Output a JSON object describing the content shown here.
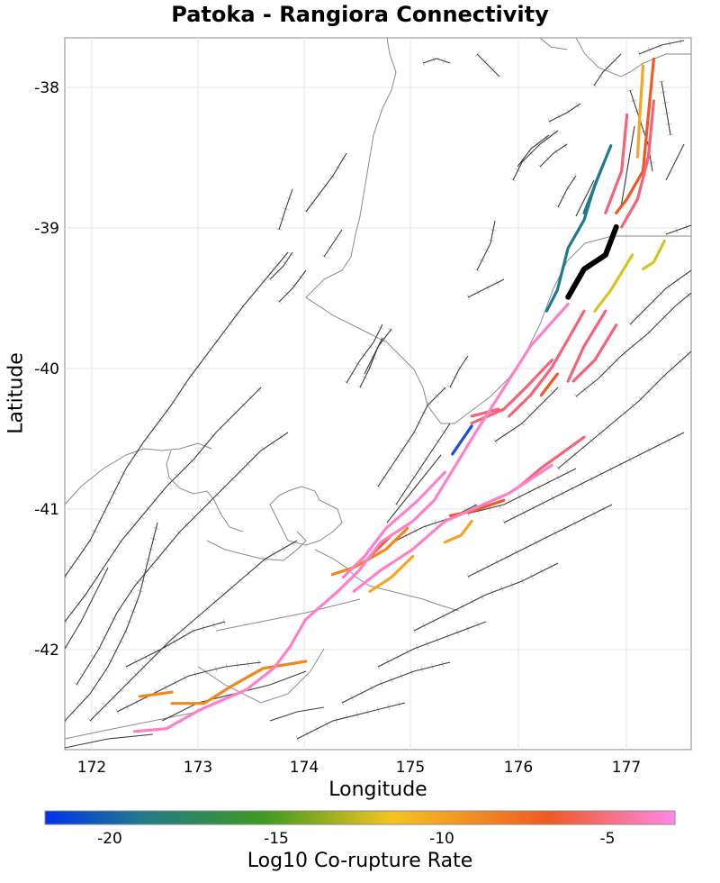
{
  "title": "Patoka - Rangiora Connectivity",
  "x_axis": {
    "label": "Longitude",
    "ticks": [
      "172",
      "173",
      "174",
      "175",
      "176",
      "177"
    ]
  },
  "y_axis": {
    "label": "Latitude",
    "ticks": [
      "-38",
      "-39",
      "-40",
      "-41",
      "-42"
    ]
  },
  "colorbar": {
    "label": "Log10 Co-rupture Rate",
    "ticks": [
      "-20",
      "-15",
      "-10",
      "-5"
    ],
    "colors": [
      "#0033ee",
      "#1f7a8c",
      "#3f9a1f",
      "#f5c424",
      "#ee5a24",
      "#ff88e8"
    ]
  },
  "chart_data": {
    "type": "map",
    "title": "Patoka - Rangiora Connectivity",
    "xlabel": "Longitude",
    "ylabel": "Latitude",
    "xlim": [
      171.75,
      177.6
    ],
    "ylim": [
      -42.73,
      -37.65
    ],
    "color_scale": {
      "label": "Log10 Co-rupture Rate",
      "range": [
        -22.3,
        -3.4
      ]
    },
    "source_fault": {
      "name": "Patoka - Rangiora",
      "color": "#000000",
      "coords": [
        [
          176.9,
          -39.0
        ],
        [
          176.8,
          -39.2
        ],
        [
          176.6,
          -39.3
        ],
        [
          176.45,
          -39.5
        ]
      ]
    },
    "faults": [
      {
        "value": -21.5,
        "color": "#1a4fdc",
        "coords": [
          [
            175.55,
            -40.42
          ],
          [
            175.37,
            -40.62
          ]
        ]
      },
      {
        "value": -19.5,
        "color": "#1f7a8c",
        "coords": [
          [
            176.85,
            -38.42
          ],
          [
            176.7,
            -38.7
          ],
          [
            176.6,
            -38.95
          ],
          [
            176.45,
            -39.15
          ],
          [
            176.35,
            -39.45
          ],
          [
            176.25,
            -39.6
          ]
        ]
      },
      {
        "value": -19.5,
        "color": "#1f7a8c",
        "coords": [
          [
            176.78,
            -38.55
          ],
          [
            176.6,
            -38.9
          ]
        ]
      },
      {
        "value": -13.5,
        "color": "#d8c224",
        "coords": [
          [
            177.35,
            -39.1
          ],
          [
            177.25,
            -39.25
          ],
          [
            177.15,
            -39.3
          ]
        ]
      },
      {
        "value": -13.5,
        "color": "#d8c224",
        "coords": [
          [
            177.05,
            -39.2
          ],
          [
            176.85,
            -39.45
          ],
          [
            176.7,
            -39.6
          ]
        ]
      },
      {
        "value": -10.5,
        "color": "#f5a524",
        "coords": [
          [
            177.15,
            -37.85
          ],
          [
            177.12,
            -38.2
          ],
          [
            177.1,
            -38.5
          ]
        ]
      },
      {
        "value": -10.5,
        "color": "#f5a524",
        "coords": [
          [
            175.55,
            -41.1
          ],
          [
            175.45,
            -41.2
          ],
          [
            175.3,
            -41.25
          ]
        ]
      },
      {
        "value": -10.5,
        "color": "#f5a524",
        "coords": [
          [
            175.0,
            -41.35
          ],
          [
            174.8,
            -41.5
          ],
          [
            174.6,
            -41.6
          ]
        ]
      },
      {
        "value": -9.5,
        "color": "#f0881e",
        "coords": [
          [
            174.0,
            -42.1
          ],
          [
            173.6,
            -42.15
          ],
          [
            173.3,
            -42.28
          ],
          [
            173.05,
            -42.4
          ],
          [
            172.75,
            -42.4
          ]
        ]
      },
      {
        "value": -9.5,
        "color": "#f0881e",
        "coords": [
          [
            172.75,
            -42.32
          ],
          [
            172.45,
            -42.35
          ]
        ]
      },
      {
        "value": -9.5,
        "color": "#f0881e",
        "coords": [
          [
            174.95,
            -41.15
          ],
          [
            174.75,
            -41.3
          ],
          [
            174.45,
            -41.43
          ],
          [
            174.25,
            -41.48
          ]
        ]
      },
      {
        "value": -7.5,
        "color": "#ee5a24",
        "coords": [
          [
            177.25,
            -37.8
          ],
          [
            177.2,
            -38.2
          ],
          [
            177.15,
            -38.6
          ],
          [
            177.0,
            -38.8
          ],
          [
            176.9,
            -38.9
          ]
        ]
      },
      {
        "value": -7.5,
        "color": "#ee5a24",
        "coords": [
          [
            176.35,
            -40.05
          ],
          [
            176.2,
            -40.2
          ]
        ]
      },
      {
        "value": -7.5,
        "color": "#ee5a24",
        "coords": [
          [
            175.85,
            -40.95
          ],
          [
            175.55,
            -41.03
          ],
          [
            175.35,
            -41.06
          ]
        ]
      },
      {
        "value": -7.5,
        "color": "#ee5a24",
        "coords": [
          [
            174.8,
            -41.2
          ],
          [
            174.6,
            -41.35
          ]
        ]
      },
      {
        "value": -5.5,
        "color": "#f5637a",
        "coords": [
          [
            177.25,
            -38.1
          ],
          [
            177.2,
            -38.5
          ],
          [
            177.1,
            -38.8
          ],
          [
            176.95,
            -39.0
          ]
        ]
      },
      {
        "value": -5.5,
        "color": "#f5637a",
        "coords": [
          [
            177.0,
            -38.2
          ],
          [
            176.95,
            -38.6
          ],
          [
            176.8,
            -38.9
          ]
        ]
      },
      {
        "value": -5.5,
        "color": "#f5637a",
        "coords": [
          [
            176.6,
            -39.6
          ],
          [
            176.45,
            -39.8
          ],
          [
            176.3,
            -40.0
          ],
          [
            176.1,
            -40.2
          ],
          [
            175.9,
            -40.35
          ]
        ]
      },
      {
        "value": -5.5,
        "color": "#f5637a",
        "coords": [
          [
            176.8,
            -39.6
          ],
          [
            176.6,
            -39.85
          ],
          [
            176.45,
            -40.1
          ]
        ]
      },
      {
        "value": -5.5,
        "color": "#f5637a",
        "coords": [
          [
            176.9,
            -39.7
          ],
          [
            176.7,
            -39.95
          ],
          [
            176.5,
            -40.1
          ]
        ]
      },
      {
        "value": -5.5,
        "color": "#f5637a",
        "coords": [
          [
            176.3,
            -39.95
          ],
          [
            176.05,
            -40.15
          ],
          [
            175.85,
            -40.3
          ],
          [
            175.55,
            -40.4
          ]
        ]
      },
      {
        "value": -5.5,
        "color": "#f5637a",
        "coords": [
          [
            176.6,
            -40.5
          ],
          [
            176.2,
            -40.72
          ],
          [
            176.0,
            -40.85
          ]
        ]
      },
      {
        "value": -5.5,
        "color": "#f5637a",
        "coords": [
          [
            175.8,
            -40.3
          ],
          [
            175.55,
            -40.35
          ]
        ]
      },
      {
        "value": -4.0,
        "color": "#ff80c8",
        "coords": [
          [
            176.45,
            -39.55
          ],
          [
            176.1,
            -39.85
          ],
          [
            175.85,
            -40.15
          ],
          [
            175.6,
            -40.45
          ],
          [
            175.4,
            -40.7
          ],
          [
            175.2,
            -40.95
          ],
          [
            175.0,
            -41.1
          ],
          [
            174.7,
            -41.25
          ],
          [
            174.5,
            -41.45
          ],
          [
            174.3,
            -41.6
          ],
          [
            174.0,
            -41.8
          ],
          [
            173.85,
            -42.0
          ],
          [
            173.7,
            -42.15
          ],
          [
            173.45,
            -42.3
          ],
          [
            173.0,
            -42.45
          ],
          [
            172.7,
            -42.58
          ],
          [
            172.4,
            -42.6
          ]
        ]
      },
      {
        "value": -4.0,
        "color": "#ff80c8",
        "coords": [
          [
            176.3,
            -40.7
          ],
          [
            175.9,
            -40.9
          ],
          [
            175.6,
            -41.0
          ],
          [
            175.3,
            -41.1
          ],
          [
            175.0,
            -41.3
          ],
          [
            174.7,
            -41.45
          ],
          [
            174.45,
            -41.6
          ]
        ]
      },
      {
        "value": -4.0,
        "color": "#ff80c8",
        "coords": [
          [
            175.3,
            -40.75
          ],
          [
            175.05,
            -40.95
          ],
          [
            174.75,
            -41.15
          ],
          [
            174.55,
            -41.35
          ],
          [
            174.35,
            -41.5
          ]
        ]
      }
    ]
  }
}
